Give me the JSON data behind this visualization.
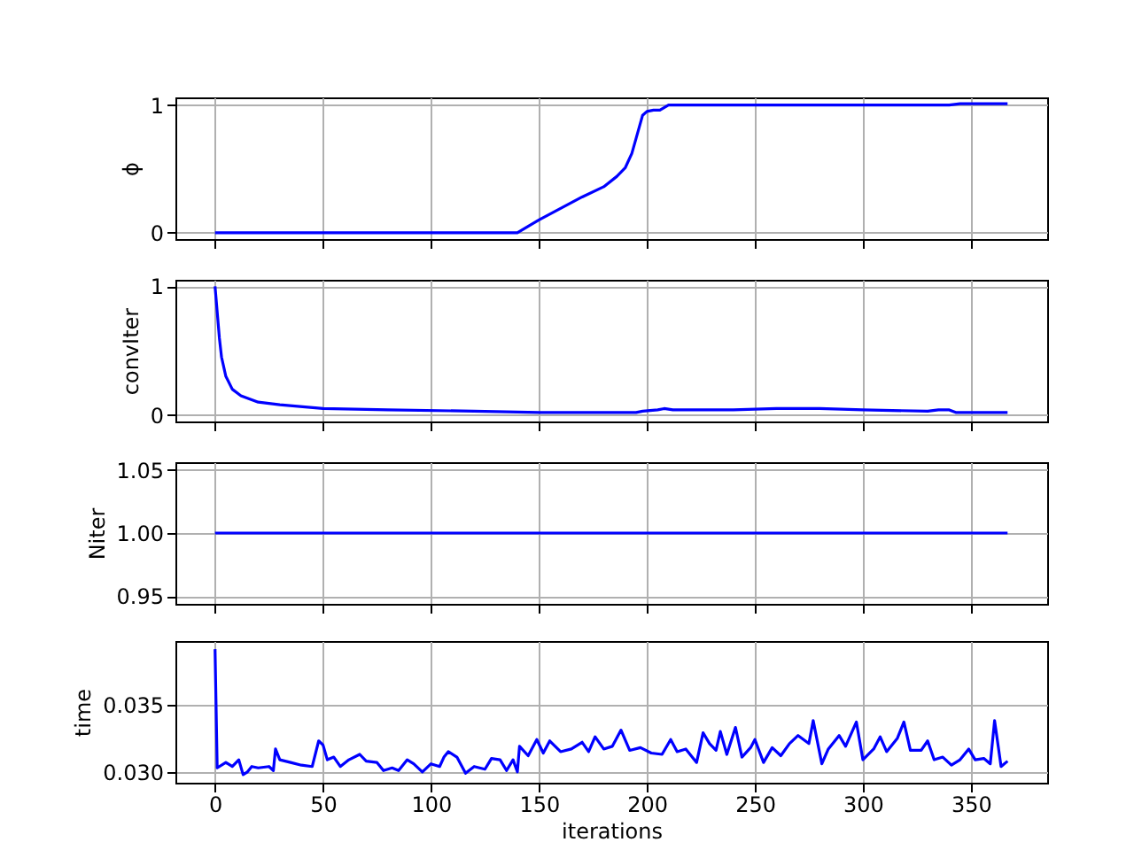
{
  "chart_data": [
    {
      "type": "line",
      "ylabel": "ϕ",
      "xlim": [
        -18.35,
        385.35
      ],
      "xticks": [
        0,
        50,
        100,
        150,
        200,
        250,
        300,
        350
      ],
      "ylim": [
        -0.05,
        1.06
      ],
      "yticks": [
        {
          "value": 0,
          "label": "0"
        },
        {
          "value": 1,
          "label": "1"
        }
      ],
      "grid": true,
      "tick_labels": "y",
      "series": [
        {
          "color": "#0000ff",
          "x": [
            0,
            140,
            150,
            160,
            170,
            180,
            186,
            190,
            193,
            195,
            198,
            200,
            203,
            206,
            210,
            220,
            340,
            345,
            367
          ],
          "values": [
            0,
            0,
            0.1,
            0.19,
            0.28,
            0.36,
            0.44,
            0.51,
            0.62,
            0.74,
            0.92,
            0.95,
            0.96,
            0.96,
            1.0,
            1.0,
            1.0,
            1.01,
            1.01
          ]
        }
      ]
    },
    {
      "type": "line",
      "ylabel": "convIter",
      "xlim": [
        -18.35,
        385.35
      ],
      "xticks": [
        0,
        50,
        100,
        150,
        200,
        250,
        300,
        350
      ],
      "ylim": [
        -0.05,
        1.05
      ],
      "yticks": [
        {
          "value": 0,
          "label": "0"
        },
        {
          "value": 1,
          "label": "1"
        }
      ],
      "grid": true,
      "tick_labels": "y",
      "series": [
        {
          "color": "#0000ff",
          "x": [
            0,
            1,
            2,
            3,
            5,
            8,
            12,
            20,
            30,
            50,
            80,
            120,
            150,
            195,
            198,
            205,
            208,
            212,
            220,
            230,
            240,
            260,
            280,
            300,
            330,
            335,
            340,
            343,
            367
          ],
          "values": [
            1.0,
            0.8,
            0.6,
            0.45,
            0.3,
            0.2,
            0.15,
            0.1,
            0.08,
            0.05,
            0.04,
            0.03,
            0.02,
            0.02,
            0.03,
            0.04,
            0.05,
            0.04,
            0.04,
            0.04,
            0.04,
            0.05,
            0.05,
            0.04,
            0.03,
            0.04,
            0.04,
            0.02,
            0.02
          ]
        }
      ]
    },
    {
      "type": "line",
      "ylabel": "Niter",
      "xlim": [
        -18.35,
        385.35
      ],
      "xticks": [
        0,
        50,
        100,
        150,
        200,
        250,
        300,
        350
      ],
      "ylim": [
        0.944,
        1.056
      ],
      "yticks": [
        {
          "value": 0.95,
          "label": "0.95"
        },
        {
          "value": 1,
          "label": "1.00"
        },
        {
          "value": 1.05,
          "label": "1.05"
        }
      ],
      "grid": true,
      "tick_labels": "y",
      "series": [
        {
          "color": "#0000ff",
          "x": [
            0,
            367
          ],
          "values": [
            1,
            1
          ]
        }
      ]
    },
    {
      "type": "line",
      "ylabel": "time",
      "xlabel": "iterations",
      "xlim": [
        -18.35,
        385.35
      ],
      "xticks": [
        0,
        50,
        100,
        150,
        200,
        250,
        300,
        350
      ],
      "ylim": [
        0.0292,
        0.0397
      ],
      "yticks": [
        {
          "value": 0.03,
          "label": "0.030"
        },
        {
          "value": 0.035,
          "label": "0.035"
        }
      ],
      "grid": true,
      "series": [
        {
          "color": "#0000ff",
          "x": [
            0,
            1,
            5,
            8,
            11,
            13,
            15,
            17,
            20,
            25,
            27,
            28,
            30,
            35,
            40,
            45,
            48,
            50,
            52,
            55,
            58,
            62,
            67,
            70,
            75,
            78,
            82,
            85,
            89,
            92,
            96,
            100,
            104,
            106,
            108,
            112,
            116,
            120,
            125,
            128,
            132,
            135,
            138,
            140,
            141,
            145,
            149,
            152,
            155,
            160,
            165,
            170,
            173,
            176,
            180,
            184,
            188,
            192,
            197,
            202,
            207,
            211,
            214,
            218,
            223,
            226,
            229,
            232,
            234,
            237,
            241,
            244,
            248,
            250,
            254,
            258,
            262,
            266,
            270,
            275,
            277,
            281,
            284,
            289,
            292,
            297,
            300,
            305,
            308,
            311,
            316,
            319,
            322,
            327,
            330,
            333,
            337,
            341,
            345,
            349,
            352,
            356,
            359,
            361,
            364,
            367
          ],
          "values": [
            0.0391,
            0.0303,
            0.0307,
            0.0304,
            0.0309,
            0.0298,
            0.03,
            0.0304,
            0.0303,
            0.0304,
            0.0301,
            0.0317,
            0.0309,
            0.0307,
            0.0305,
            0.0304,
            0.0323,
            0.032,
            0.0309,
            0.0311,
            0.0304,
            0.0309,
            0.0313,
            0.0308,
            0.0307,
            0.0301,
            0.0303,
            0.0301,
            0.0309,
            0.0306,
            0.03,
            0.0306,
            0.0304,
            0.0311,
            0.0315,
            0.0311,
            0.0299,
            0.0304,
            0.0302,
            0.031,
            0.0309,
            0.0301,
            0.0309,
            0.03,
            0.0319,
            0.0312,
            0.0324,
            0.0314,
            0.0323,
            0.0315,
            0.0317,
            0.0322,
            0.0315,
            0.0326,
            0.0317,
            0.0319,
            0.0331,
            0.0316,
            0.0318,
            0.0314,
            0.0313,
            0.0324,
            0.0315,
            0.0317,
            0.0307,
            0.0329,
            0.0321,
            0.0316,
            0.033,
            0.0313,
            0.0333,
            0.0311,
            0.0318,
            0.0324,
            0.0307,
            0.0318,
            0.0312,
            0.0321,
            0.0327,
            0.0321,
            0.0338,
            0.0306,
            0.0317,
            0.0327,
            0.0319,
            0.0337,
            0.0309,
            0.0317,
            0.0326,
            0.0315,
            0.0325,
            0.0337,
            0.0316,
            0.0316,
            0.0323,
            0.0309,
            0.0311,
            0.0305,
            0.0309,
            0.0317,
            0.0309,
            0.031,
            0.0306,
            0.0338,
            0.0304,
            0.0308
          ]
        }
      ]
    }
  ]
}
